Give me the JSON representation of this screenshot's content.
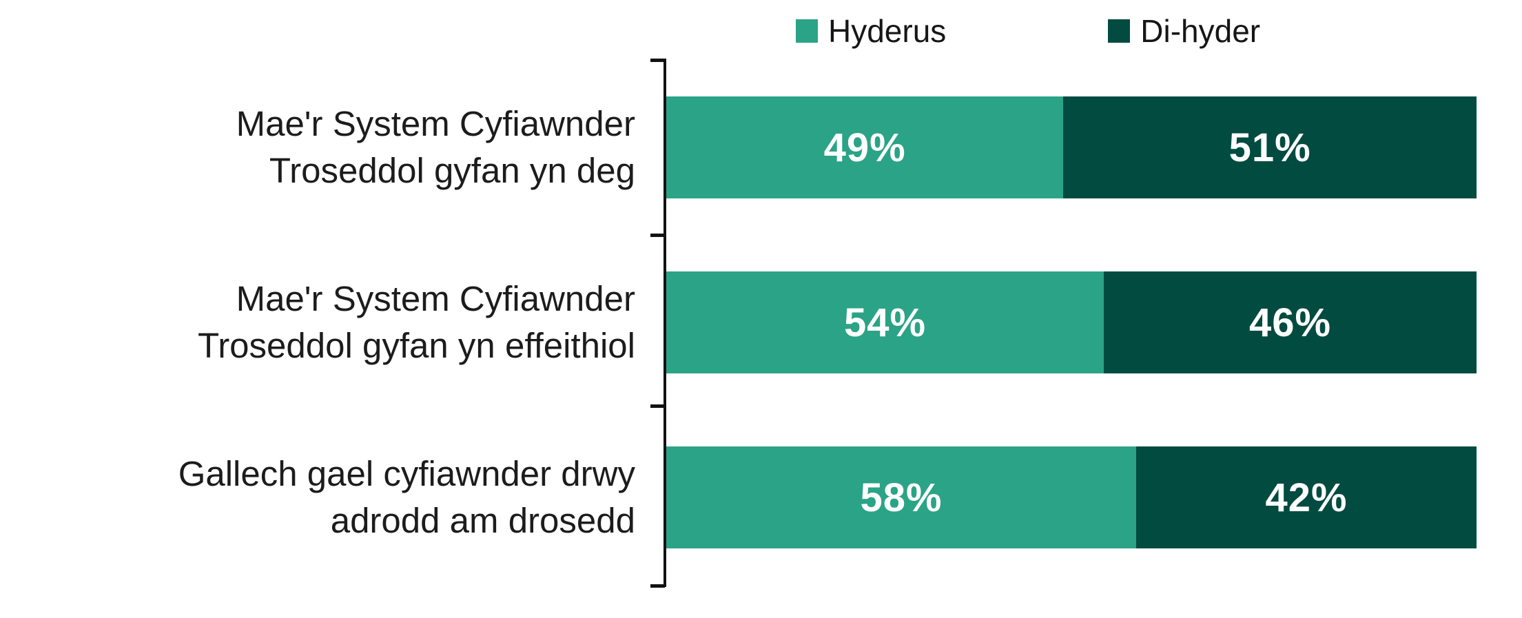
{
  "chart_data": {
    "type": "bar",
    "orientation": "horizontal",
    "stacked": true,
    "title": "",
    "xlabel": "",
    "ylabel": "",
    "xlim": [
      0,
      100
    ],
    "grid": false,
    "legend_position": "top",
    "categories": [
      "Mae'r System Cyfiawnder Troseddol gyfan yn deg",
      "Mae'r System Cyfiawnder Troseddol gyfan yn effeithiol",
      "Gallech gael cyfiawnder drwy adrodd am drosedd"
    ],
    "category_lines": [
      [
        "Mae'r System Cyfiawnder",
        "Troseddol gyfan yn deg"
      ],
      [
        "Mae'r System Cyfiawnder",
        "Troseddol gyfan yn effeithiol"
      ],
      [
        "Gallech gael cyfiawnder drwy",
        "adrodd am drosedd"
      ]
    ],
    "series": [
      {
        "name": "Hyderus",
        "color": "#2BA386",
        "values": [
          49,
          54,
          58
        ],
        "labels": [
          "49%",
          "54%",
          "58%"
        ]
      },
      {
        "name": "Di-hyder",
        "color": "#024B40",
        "values": [
          51,
          46,
          42
        ],
        "labels": [
          "51%",
          "46%",
          "42%"
        ]
      }
    ],
    "value_label_color": "#ffffff",
    "text_color": "#1c1c1c",
    "axis_color": "#121212"
  }
}
